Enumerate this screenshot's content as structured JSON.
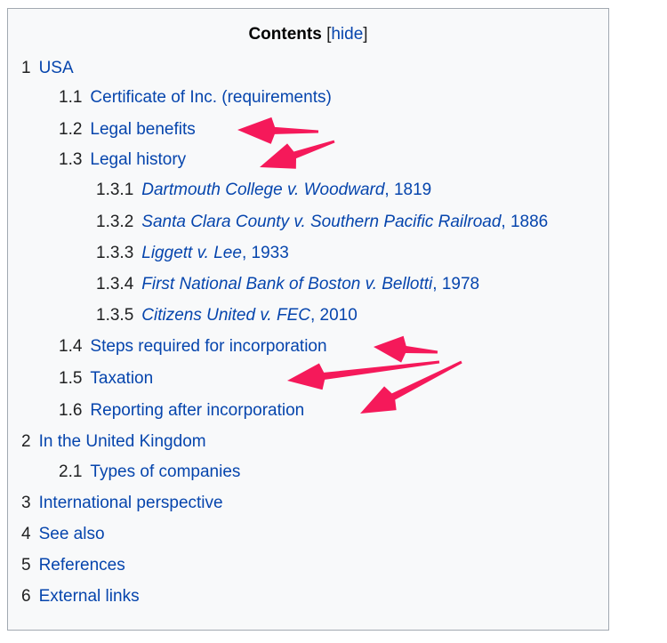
{
  "toc": {
    "title": "Contents",
    "hide_label": "hide",
    "items": [
      {
        "num": "1",
        "level": 1,
        "label": "USA"
      },
      {
        "num": "1.1",
        "level": 2,
        "label": "Certificate of Inc. (requirements)"
      },
      {
        "num": "1.2",
        "level": 2,
        "label": "Legal benefits"
      },
      {
        "num": "1.3",
        "level": 2,
        "label": "Legal history"
      },
      {
        "num": "1.3.1",
        "level": 3,
        "case": "Dartmouth College v. Woodward",
        "year": ", 1819"
      },
      {
        "num": "1.3.2",
        "level": 3,
        "case": "Santa Clara County v. Southern Pacific Railroad",
        "year": ", 1886"
      },
      {
        "num": "1.3.3",
        "level": 3,
        "case": "Liggett v. Lee",
        "year": ", 1933"
      },
      {
        "num": "1.3.4",
        "level": 3,
        "case": "First National Bank of Boston v. Bellotti",
        "year": ", 1978"
      },
      {
        "num": "1.3.5",
        "level": 3,
        "case": "Citizens United v. FEC",
        "year": ", 2010"
      },
      {
        "num": "1.4",
        "level": 2,
        "label": "Steps required for incorporation"
      },
      {
        "num": "1.5",
        "level": 2,
        "label": "Taxation"
      },
      {
        "num": "1.6",
        "level": 2,
        "label": "Reporting after incorporation"
      },
      {
        "num": "2",
        "level": 1,
        "label": "In the United Kingdom"
      },
      {
        "num": "2.1",
        "level": 2,
        "label": "Types of companies"
      },
      {
        "num": "3",
        "level": 1,
        "label": "International perspective"
      },
      {
        "num": "4",
        "level": 1,
        "label": "See also"
      },
      {
        "num": "5",
        "level": 1,
        "label": "References"
      },
      {
        "num": "6",
        "level": 1,
        "label": "External links"
      }
    ]
  },
  "annotation_color": "#f5195a",
  "annotations": [
    "arrow-icon",
    "arrow-icon",
    "arrow-icon",
    "arrow-icon",
    "arrow-icon"
  ]
}
